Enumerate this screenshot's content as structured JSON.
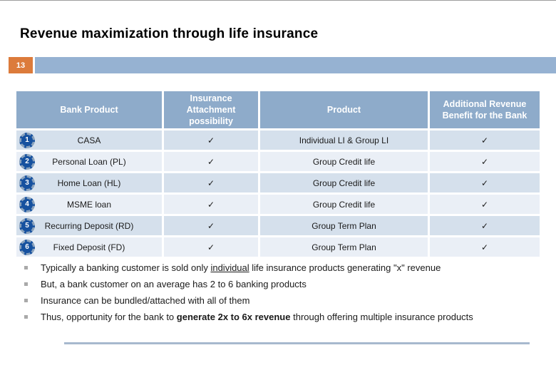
{
  "slide": {
    "title": "Revenue maximization through life insurance",
    "page_number": "13"
  },
  "table": {
    "headers": [
      "Bank Product",
      "Insurance Attachment possibility",
      "Product",
      "Additional Revenue Benefit for the Bank"
    ],
    "rows": [
      {
        "num": "1",
        "bank_product": "CASA",
        "attach": "✓",
        "product": "Individual LI & Group LI",
        "benefit": "✓"
      },
      {
        "num": "2",
        "bank_product": "Personal Loan (PL)",
        "attach": "✓",
        "product": "Group Credit life",
        "benefit": "✓"
      },
      {
        "num": "3",
        "bank_product": "Home Loan (HL)",
        "attach": "✓",
        "product": "Group Credit life",
        "benefit": "✓"
      },
      {
        "num": "4",
        "bank_product": "MSME loan",
        "attach": "✓",
        "product": "Group Credit life",
        "benefit": "✓"
      },
      {
        "num": "5",
        "bank_product": "Recurring Deposit (RD)",
        "attach": "✓",
        "product": "Group Term Plan",
        "benefit": "✓"
      },
      {
        "num": "6",
        "bank_product": "Fixed Deposit (FD)",
        "attach": "✓",
        "product": "Group Term Plan",
        "benefit": "✓"
      }
    ]
  },
  "bullets": [
    {
      "runs": [
        {
          "t": "Typically a banking customer is sold only "
        },
        {
          "t": "individual",
          "u": true
        },
        {
          "t": " life insurance products generating \"x\" revenue"
        }
      ]
    },
    {
      "runs": [
        {
          "t": "But, a bank customer on an average has 2 to 6 banking products"
        }
      ]
    },
    {
      "runs": [
        {
          "t": "Insurance can be bundled/attached with all of them"
        }
      ]
    },
    {
      "runs": [
        {
          "t": "Thus, opportunity for the bank to "
        },
        {
          "t": "generate 2x to 6x revenue",
          "b": true
        },
        {
          "t": " through offering multiple insurance products"
        }
      ]
    }
  ],
  "colors": {
    "header_blue": "#8eabca",
    "row_odd": "#d5e0ec",
    "row_even": "#eaeff6",
    "accent_orange": "#dc7b3b",
    "bar_blue": "#96b2d2",
    "badge_navy": "#16519f",
    "rule_blue": "#a7b9ce"
  }
}
